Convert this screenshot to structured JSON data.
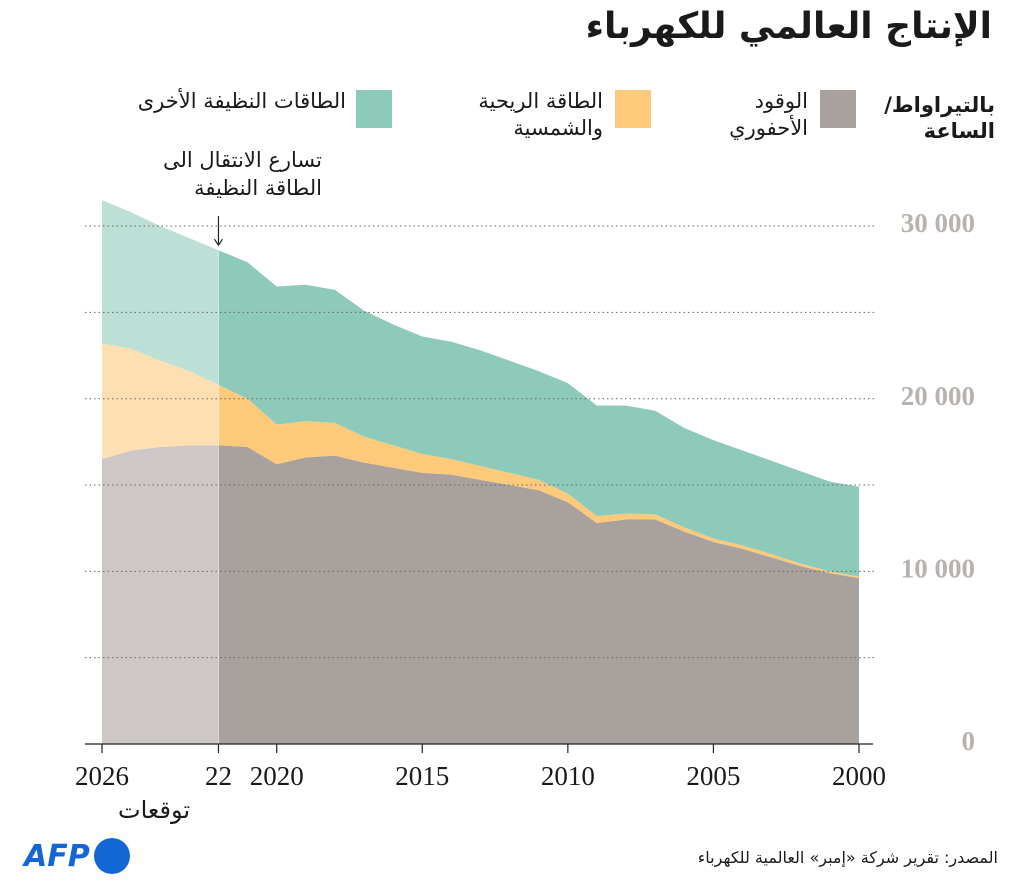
{
  "chart_data": {
    "type": "stacked-area",
    "title": "الإنتاج العالمي للكهرباء",
    "y_label": "بالتيراواط/\nالساعة",
    "annotation": {
      "text": "تسارع الانتقال الى\nالطاقة النظيفة",
      "x": 2022
    },
    "forecast": {
      "start": 2022,
      "label": "توقعات"
    },
    "source": "المصدر: تقرير شركة «إمبر» العالمية للكهرباء",
    "logo": "AFP",
    "x": [
      2000,
      2001,
      2002,
      2003,
      2004,
      2005,
      2006,
      2007,
      2008,
      2009,
      2010,
      2011,
      2012,
      2013,
      2014,
      2015,
      2016,
      2017,
      2018,
      2019,
      2020,
      2021,
      2022,
      2023,
      2024,
      2025,
      2026
    ],
    "series": [
      {
        "name": "الوقود\nالأحفوري",
        "color": "#a9a19d",
        "values": [
          9600,
          9900,
          10300,
          10800,
          11300,
          11700,
          12300,
          13000,
          13000,
          12800,
          14000,
          14700,
          15000,
          15300,
          15600,
          15700,
          16000,
          16300,
          16700,
          16600,
          16200,
          17200,
          17300,
          17300,
          17200,
          17000,
          16500
        ]
      },
      {
        "name": "الطاقة الريحية\nوالشمسية",
        "color": "#fdc97a",
        "values": [
          100,
          100,
          150,
          200,
          200,
          200,
          250,
          300,
          350,
          400,
          500,
          600,
          700,
          800,
          900,
          1100,
          1300,
          1500,
          1900,
          2100,
          2300,
          2800,
          3500,
          4300,
          5000,
          5900,
          6700
        ]
      },
      {
        "name": "الطاقات النظيفة الأخرى",
        "color": "#8ecab9",
        "values": [
          5200,
          5200,
          5350,
          5400,
          5500,
          5700,
          5750,
          6000,
          6250,
          6400,
          6400,
          6300,
          6500,
          6700,
          6800,
          6800,
          7000,
          7300,
          7700,
          7900,
          8000,
          7900,
          7800,
          7700,
          7800,
          7900,
          8300
        ]
      }
    ],
    "xlim": [
      2026,
      2000
    ],
    "xticks": [
      2000,
      2005,
      2010,
      2015,
      2020,
      {
        "value": 2022,
        "label": "22"
      },
      2026
    ],
    "ylim": [
      0,
      32000
    ],
    "yticks": [
      {
        "value": 0,
        "label": "0"
      },
      {
        "value": 10000,
        "label": "10 000"
      },
      {
        "value": 20000,
        "label": "20 000"
      },
      {
        "value": 30000,
        "label": "30 000"
      }
    ],
    "minor_gridlines": [
      5000,
      15000,
      25000
    ],
    "grid": true
  }
}
